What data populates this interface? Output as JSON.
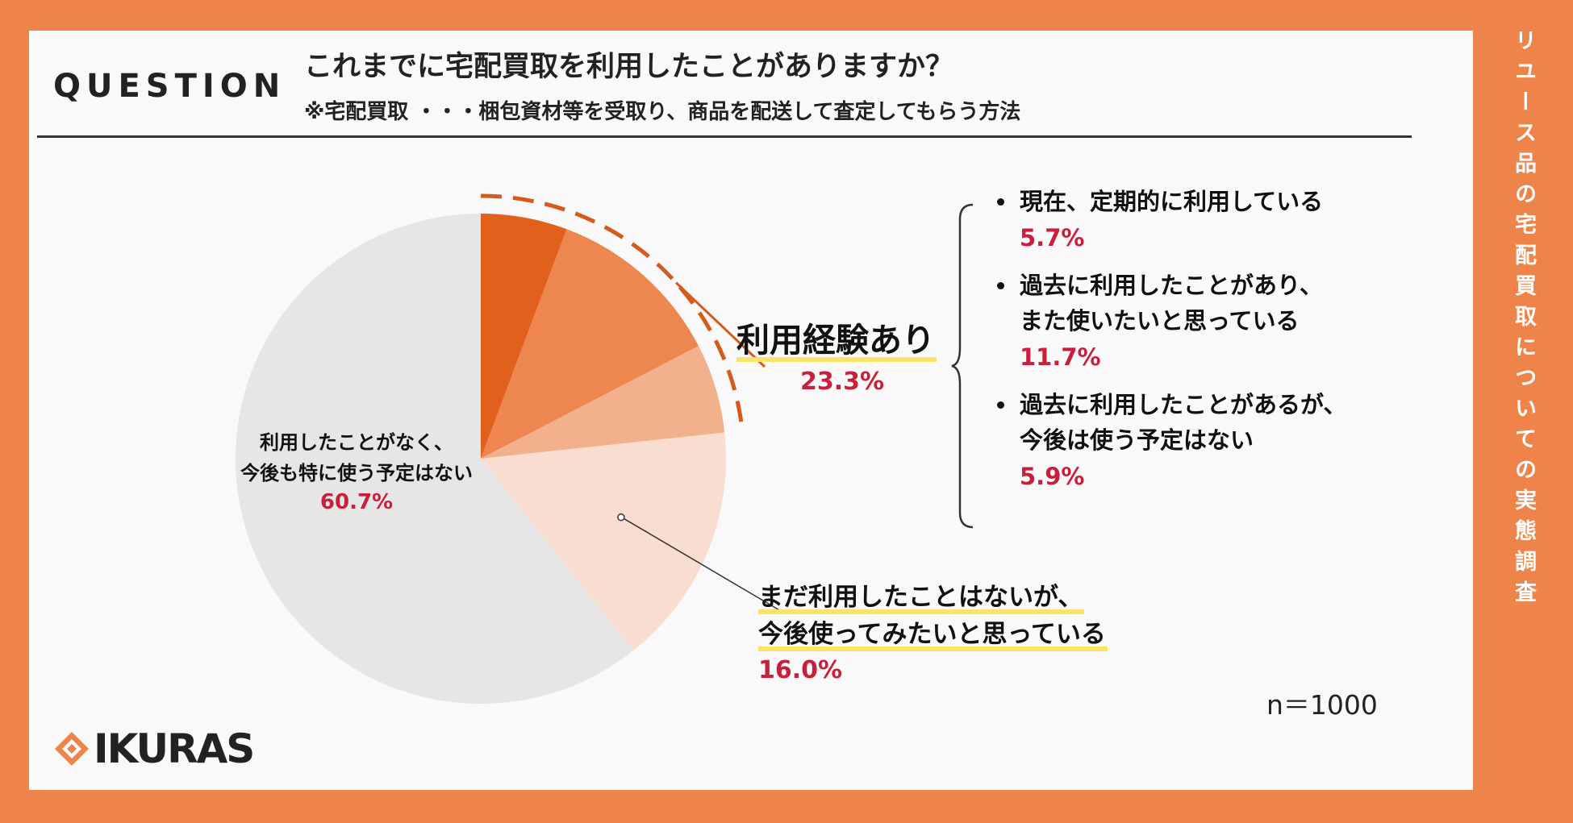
{
  "side_title": "リユース品の宅配買取についての実態調査",
  "question": {
    "label": "QUESTION",
    "title": "これまでに宅配買取を利用したことがありますか？",
    "note": "※宅配買取 ・・・梱包資材等を受取り、商品を配送して査定してもらう方法"
  },
  "chart_data": {
    "type": "pie",
    "sample_size": "n＝1000",
    "slices": [
      {
        "label": "現在、定期的に利用している",
        "value": 5.7,
        "value_label": "5.7%",
        "color": "#E0601C"
      },
      {
        "label": "過去に利用したことがあり、また使いたいと思っている",
        "value": 11.7,
        "value_label": "11.7%",
        "color": "#EE874F"
      },
      {
        "label": "過去に利用したことがあるが、今後は使う予定はない",
        "value": 5.9,
        "value_label": "5.9%",
        "color": "#F3B08C"
      },
      {
        "label": "まだ利用したことはないが、今後使ってみたいと思っている",
        "value": 16.0,
        "value_label": "16.0%",
        "color": "#F8DDD0"
      },
      {
        "label": "利用したことがなく、今後も特に使う予定はない",
        "value": 60.7,
        "value_label": "60.7%",
        "color": "#E6E6E6"
      }
    ],
    "group": {
      "label": "利用経験あり",
      "value": 23.3,
      "value_label": "23.3%"
    },
    "accent_color": "#C8203C",
    "highlight_color": "#FBE36A"
  },
  "legend": {
    "items": [
      {
        "lines": [
          "現在、定期的に利用している"
        ],
        "pct": "5.7%"
      },
      {
        "lines": [
          "過去に利用したことがあり、",
          "また使いたいと思っている"
        ],
        "pct": "11.7%"
      },
      {
        "lines": [
          "過去に利用したことがあるが、",
          "今後は使う予定はない"
        ],
        "pct": "5.9%"
      }
    ]
  },
  "slice_none": {
    "lines": [
      "利用したことがなく、",
      "今後も特に使う予定はない"
    ],
    "pct": "60.7%"
  },
  "callout": {
    "lines": [
      "まだ利用したことはないが、",
      "今後使ってみたいと思っている"
    ],
    "pct": "16.0%"
  },
  "logo": {
    "text": "IKURAS"
  }
}
